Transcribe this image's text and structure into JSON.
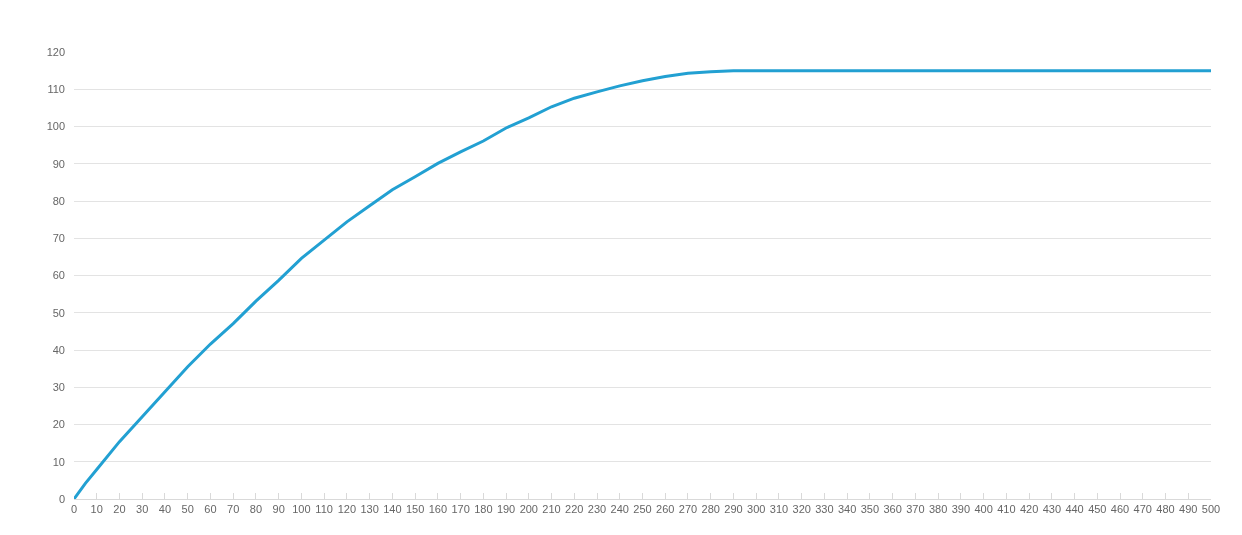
{
  "chart_data": {
    "type": "line",
    "x": [
      0,
      5,
      10,
      20,
      30,
      40,
      50,
      60,
      70,
      80,
      90,
      100,
      110,
      120,
      130,
      140,
      150,
      160,
      170,
      180,
      190,
      200,
      210,
      220,
      230,
      240,
      250,
      260,
      270,
      280,
      290,
      300,
      400,
      500
    ],
    "series": [
      {
        "color": "#22a0d2",
        "values": [
          0,
          4.2,
          7.9,
          15.4,
          22.1,
          28.8,
          35.5,
          41.6,
          47.1,
          53.1,
          58.7,
          64.6,
          69.5,
          74.4,
          78.7,
          83,
          86.5,
          90.1,
          93.2,
          96.1,
          99.6,
          102.3,
          105.3,
          107.6,
          109.3,
          110.9,
          112.3,
          113.4,
          114.3,
          114.7,
          115,
          115,
          115,
          115
        ]
      }
    ],
    "xlim": [
      0,
      500
    ],
    "xticks": [
      0,
      10,
      20,
      30,
      40,
      50,
      60,
      70,
      80,
      90,
      100,
      110,
      120,
      130,
      140,
      150,
      160,
      170,
      180,
      190,
      200,
      210,
      220,
      230,
      240,
      250,
      260,
      270,
      280,
      290,
      300,
      310,
      320,
      330,
      340,
      350,
      360,
      370,
      380,
      390,
      400,
      410,
      420,
      430,
      440,
      450,
      460,
      470,
      480,
      490,
      500
    ],
    "ylim": [
      0,
      120
    ],
    "yticks": [
      0,
      10,
      20,
      30,
      40,
      50,
      60,
      70,
      80,
      90,
      100,
      110,
      120
    ],
    "grid": "y",
    "line_style": "solid"
  }
}
